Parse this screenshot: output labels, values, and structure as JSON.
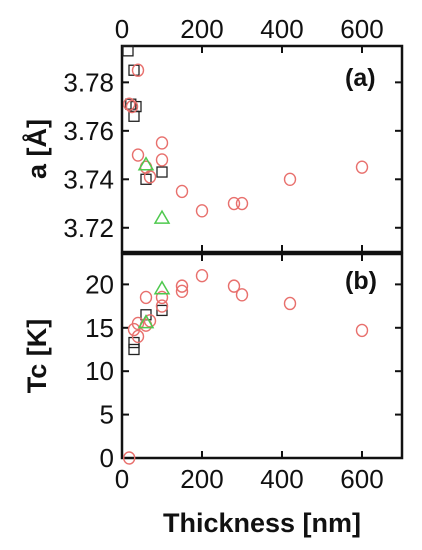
{
  "colors": {
    "axis": "#111111",
    "open_square": "#222222",
    "open_circle": "#e8706d",
    "triangle": "#4ec94e"
  },
  "chart_data": [
    {
      "type": "scatter",
      "panel_label": "(a)",
      "xlabel": "",
      "ylabel": "a [Å]",
      "xlim": [
        0,
        700
      ],
      "ylim": [
        3.71,
        3.795
      ],
      "x_ticks": [
        0,
        200,
        400,
        600
      ],
      "x_ticks_on_top": true,
      "y_ticks": [
        3.72,
        3.74,
        3.76,
        3.78
      ],
      "y_tick_labels": [
        "3.72",
        "3.74",
        "3.76",
        "3.78"
      ],
      "grid": false,
      "legend": "none",
      "series": [
        {
          "marker": "open-square",
          "color": "#222222",
          "points": [
            [
              15,
              3.793
            ],
            [
              22,
              3.771
            ],
            [
              30,
              3.785
            ],
            [
              30,
              3.766
            ],
            [
              35,
              3.77
            ],
            [
              60,
              3.74
            ],
            [
              100,
              3.743
            ]
          ]
        },
        {
          "marker": "open-circle",
          "color": "#e8706d",
          "points": [
            [
              18,
              3.771
            ],
            [
              25,
              3.77
            ],
            [
              40,
              3.785
            ],
            [
              40,
              3.75
            ],
            [
              60,
              3.745
            ],
            [
              70,
              3.741
            ],
            [
              100,
              3.755
            ],
            [
              100,
              3.748
            ],
            [
              150,
              3.735
            ],
            [
              200,
              3.727
            ],
            [
              280,
              3.73
            ],
            [
              300,
              3.73
            ],
            [
              420,
              3.74
            ],
            [
              600,
              3.745
            ]
          ]
        },
        {
          "marker": "open-triangle",
          "color": "#4ec94e",
          "points": [
            [
              60,
              3.746
            ],
            [
              100,
              3.724
            ]
          ]
        }
      ]
    },
    {
      "type": "scatter",
      "panel_label": "(b)",
      "xlabel": "Thickness [nm]",
      "ylabel": "Tc [K]",
      "xlim": [
        0,
        700
      ],
      "ylim": [
        0,
        23.5
      ],
      "x_ticks": [
        0,
        200,
        400,
        600
      ],
      "y_ticks": [
        0,
        5,
        10,
        15,
        20
      ],
      "y_tick_labels": [
        "0",
        "5",
        "10",
        "15",
        "20"
      ],
      "grid": false,
      "legend": "none",
      "series": [
        {
          "marker": "open-square",
          "color": "#222222",
          "points": [
            [
              30,
              12.5
            ],
            [
              30,
              13.3
            ],
            [
              60,
              16.5
            ],
            [
              100,
              17.0
            ]
          ]
        },
        {
          "marker": "open-circle",
          "color": "#e8706d",
          "points": [
            [
              18,
              0.0
            ],
            [
              30,
              14.8
            ],
            [
              40,
              15.5
            ],
            [
              40,
              14.0
            ],
            [
              60,
              18.5
            ],
            [
              60,
              15.3
            ],
            [
              70,
              15.8
            ],
            [
              100,
              17.5
            ],
            [
              100,
              18.5
            ],
            [
              150,
              19.2
            ],
            [
              150,
              19.8
            ],
            [
              200,
              21.0
            ],
            [
              280,
              19.8
            ],
            [
              300,
              18.8
            ],
            [
              420,
              17.8
            ],
            [
              600,
              14.7
            ]
          ]
        },
        {
          "marker": "open-triangle",
          "color": "#4ec94e",
          "points": [
            [
              60,
              15.6
            ],
            [
              100,
              19.5
            ]
          ]
        }
      ]
    }
  ]
}
